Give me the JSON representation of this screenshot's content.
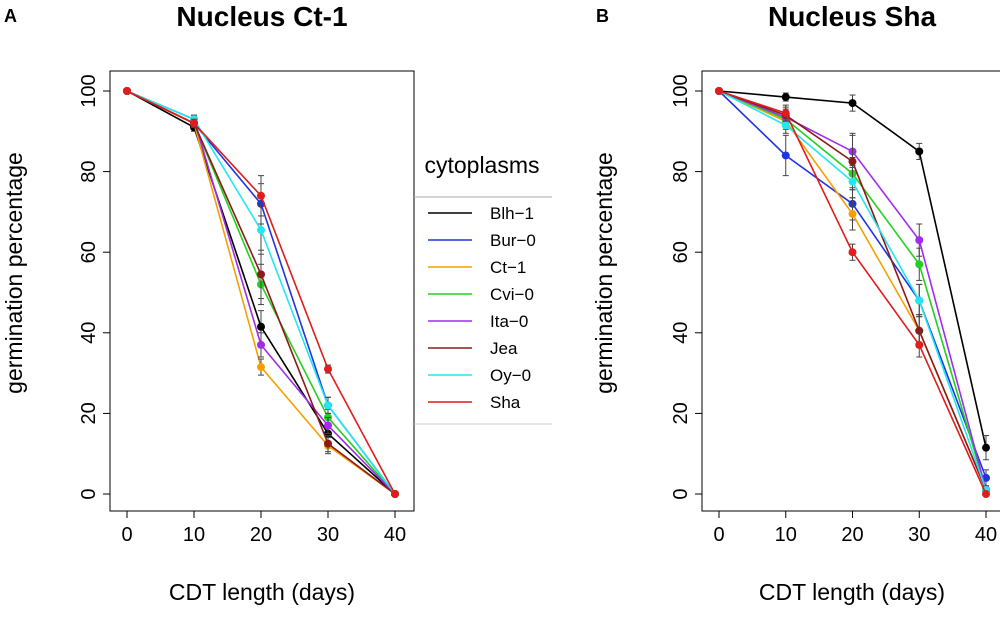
{
  "legend": {
    "title": "cytoplasms",
    "entries": [
      {
        "name": "Blh−1",
        "color": "#000000"
      },
      {
        "name": "Bur−0",
        "color": "#1f35e0"
      },
      {
        "name": "Ct−1",
        "color": "#f5a000"
      },
      {
        "name": "Cvi−0",
        "color": "#22d11f"
      },
      {
        "name": "Ita−0",
        "color": "#a02cf0"
      },
      {
        "name": "Jea",
        "color": "#8b1a1a"
      },
      {
        "name": "Oy−0",
        "color": "#22e6f0"
      },
      {
        "name": "Sha",
        "color": "#e01c1c"
      }
    ]
  },
  "chart_data": [
    {
      "type": "line",
      "panel": "A",
      "title": "Nucleus Ct-1",
      "xlabel": "CDT length (days)",
      "ylabel": "germination percentage",
      "x": [
        0,
        10,
        20,
        30,
        40
      ],
      "xticks": [
        0,
        10,
        20,
        30,
        40
      ],
      "yticks": [
        0,
        20,
        40,
        60,
        80,
        100
      ],
      "xlim": [
        0,
        40
      ],
      "ylim": [
        0,
        100
      ],
      "series": [
        {
          "name": "Blh−1",
          "values": [
            100,
            91,
            41.5,
            15,
            0
          ],
          "err": [
            0,
            1,
            4,
            2,
            0
          ]
        },
        {
          "name": "Bur−0",
          "values": [
            100,
            92,
            72,
            22,
            0
          ],
          "err": [
            0,
            1,
            5,
            2,
            0
          ]
        },
        {
          "name": "Ct−1",
          "values": [
            100,
            92,
            31.5,
            12,
            0
          ],
          "err": [
            0,
            1,
            2,
            2,
            0
          ]
        },
        {
          "name": "Cvi−0",
          "values": [
            100,
            92,
            52,
            19,
            0
          ],
          "err": [
            0,
            1,
            5,
            2,
            0
          ]
        },
        {
          "name": "Ita−0",
          "values": [
            100,
            93,
            37,
            17,
            0
          ],
          "err": [
            0,
            1,
            3,
            2,
            0
          ]
        },
        {
          "name": "Jea",
          "values": [
            100,
            92,
            54.5,
            12.5,
            0
          ],
          "err": [
            0,
            1,
            6,
            2,
            0
          ]
        },
        {
          "name": "Oy−0",
          "values": [
            100,
            93,
            65.5,
            22,
            0
          ],
          "err": [
            0,
            1,
            6,
            2,
            0
          ]
        },
        {
          "name": "Sha",
          "values": [
            100,
            92,
            74,
            31,
            0
          ],
          "err": [
            0,
            1,
            5,
            1,
            0
          ]
        }
      ]
    },
    {
      "type": "line",
      "panel": "B",
      "title": "Nucleus Sha",
      "xlabel": "CDT length (days)",
      "ylabel": "germination percentage",
      "x": [
        0,
        10,
        20,
        30,
        40
      ],
      "xticks": [
        0,
        10,
        20,
        30,
        40
      ],
      "yticks": [
        0,
        20,
        40,
        60,
        80,
        100
      ],
      "xlim": [
        0,
        40
      ],
      "ylim": [
        0,
        100
      ],
      "series": [
        {
          "name": "Blh−1",
          "values": [
            100,
            98.5,
            97,
            85,
            11.5
          ],
          "err": [
            0,
            1,
            2,
            2,
            3
          ]
        },
        {
          "name": "Bur−0",
          "values": [
            100,
            84,
            72,
            48,
            4
          ],
          "err": [
            0,
            5,
            4,
            4,
            2
          ]
        },
        {
          "name": "Ct−1",
          "values": [
            100,
            92.5,
            69.5,
            40.5,
            1
          ],
          "err": [
            0,
            2,
            4,
            4,
            1
          ]
        },
        {
          "name": "Cvi−0",
          "values": [
            100,
            93,
            79.5,
            57,
            1
          ],
          "err": [
            0,
            2,
            4,
            4,
            1
          ]
        },
        {
          "name": "Ita−0",
          "values": [
            100,
            93.5,
            85,
            63,
            1
          ],
          "err": [
            0,
            2,
            4,
            4,
            1
          ]
        },
        {
          "name": "Jea",
          "values": [
            100,
            94,
            82.5,
            40.5,
            1
          ],
          "err": [
            0,
            2,
            7,
            4,
            1
          ]
        },
        {
          "name": "Oy−0",
          "values": [
            100,
            91.5,
            77.5,
            48,
            1
          ],
          "err": [
            0,
            2,
            4,
            4,
            1
          ]
        },
        {
          "name": "Sha",
          "values": [
            100,
            94.5,
            60,
            37,
            0
          ],
          "err": [
            0,
            2,
            2,
            3,
            0
          ]
        }
      ]
    }
  ]
}
